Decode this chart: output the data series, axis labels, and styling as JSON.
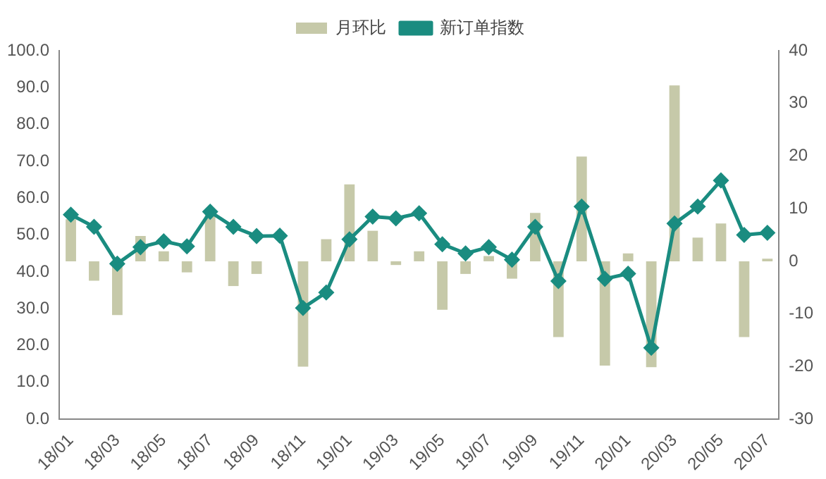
{
  "chart_data": {
    "type": "bar",
    "categories": [
      "18/01",
      null,
      "18/03",
      null,
      "18/05",
      null,
      "18/07",
      null,
      "18/09",
      null,
      "18/11",
      null,
      "19/01",
      null,
      "19/03",
      null,
      "19/05",
      null,
      "19/07",
      null,
      "19/09",
      null,
      "19/11",
      null,
      "20/01",
      null,
      "20/03",
      null,
      "20/05",
      null,
      "20/07"
    ],
    "series": [
      {
        "name": "月环比",
        "axis": "y2",
        "color": "#c6c9a9",
        "values": [
          8,
          -3.7,
          -10.2,
          4.8,
          1.9,
          -2.1,
          9,
          -4.7,
          -2.4,
          0,
          -20,
          4.2,
          14.6,
          5.8,
          -0.7,
          1.9,
          -9.2,
          -2.4,
          1,
          -3.3,
          9.2,
          -14.4,
          19.9,
          -19.8,
          1.5,
          -20.1,
          33.4,
          4.5,
          7.2,
          -14.4,
          0.5
        ]
      },
      {
        "name": "新订单指数",
        "type": "line",
        "axis": "y",
        "color": "#1a8c80",
        "marker": "diamond",
        "values": [
          55.5,
          52.2,
          42.2,
          46.7,
          48.3,
          46.9,
          56.3,
          52.2,
          49.7,
          49.8,
          30.2,
          34.4,
          48.8,
          55,
          54.5,
          55.9,
          47.5,
          45,
          46.7,
          43.3,
          52.2,
          37.5,
          57.7,
          38.1,
          39.5,
          19.4,
          53.1,
          57.7,
          64.8,
          50,
          50.6
        ]
      }
    ],
    "ylim": [
      0,
      100
    ],
    "yticks": [
      {
        "value": 0,
        "label": "0.0"
      },
      {
        "value": 10,
        "label": "10.0"
      },
      {
        "value": 20,
        "label": "20.0"
      },
      {
        "value": 30,
        "label": "30.0"
      },
      {
        "value": 40,
        "label": "40.0"
      },
      {
        "value": 50,
        "label": "50.0"
      },
      {
        "value": 60,
        "label": "60.0"
      },
      {
        "value": 70,
        "label": "70.0"
      },
      {
        "value": 80,
        "label": "80.0"
      },
      {
        "value": 90,
        "label": "90.0"
      },
      {
        "value": 100,
        "label": "100.0"
      }
    ],
    "y2lim": [
      -30,
      40
    ],
    "y2ticks": [
      -30,
      -20,
      -10,
      0,
      10,
      20,
      30,
      40
    ],
    "grid": false,
    "legend": "top"
  }
}
